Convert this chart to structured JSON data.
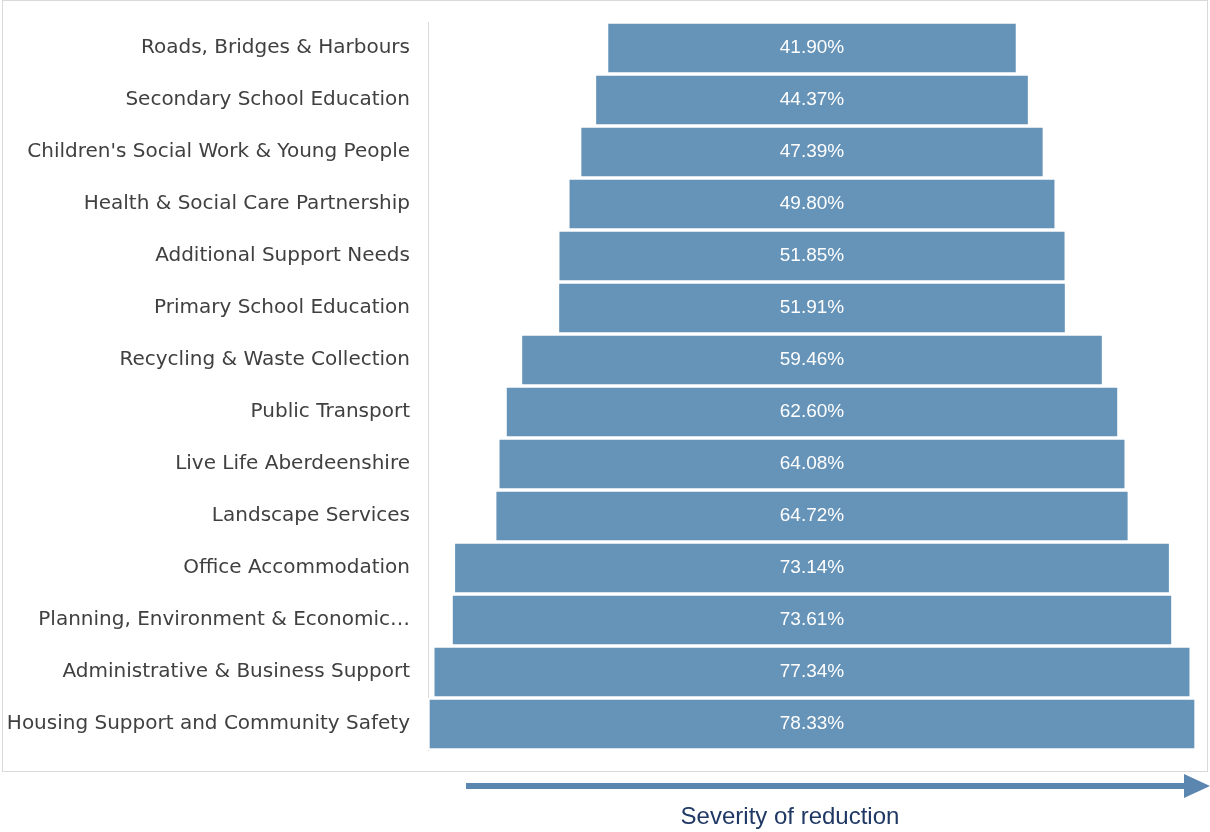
{
  "chart_data": {
    "type": "other",
    "xlabel": "Severity of reduction",
    "categories": [
      "Roads, Bridges & Harbours",
      "Secondary School Education",
      "Children's Social Work & Young People",
      "Health & Social Care Partnership",
      "Additional Support Needs",
      "Primary School Education",
      "Recycling & Waste Collection",
      "Public Transport",
      "Live Life Aberdeenshire",
      "Landscape Services",
      "Office Accommodation",
      "Planning, Environment & Economic…",
      "Administrative & Business Support",
      "Housing Support and Community Safety"
    ],
    "values": [
      41.9,
      44.37,
      47.39,
      49.8,
      51.85,
      51.91,
      59.46,
      62.6,
      64.08,
      64.72,
      73.14,
      73.61,
      77.34,
      78.33
    ],
    "value_labels": [
      "41.90%",
      "44.37%",
      "47.39%",
      "49.80%",
      "51.85%",
      "51.91%",
      "59.46%",
      "62.60%",
      "64.08%",
      "64.72%",
      "73.14%",
      "73.61%",
      "77.34%",
      "78.33%"
    ],
    "color": "#6693b8"
  }
}
